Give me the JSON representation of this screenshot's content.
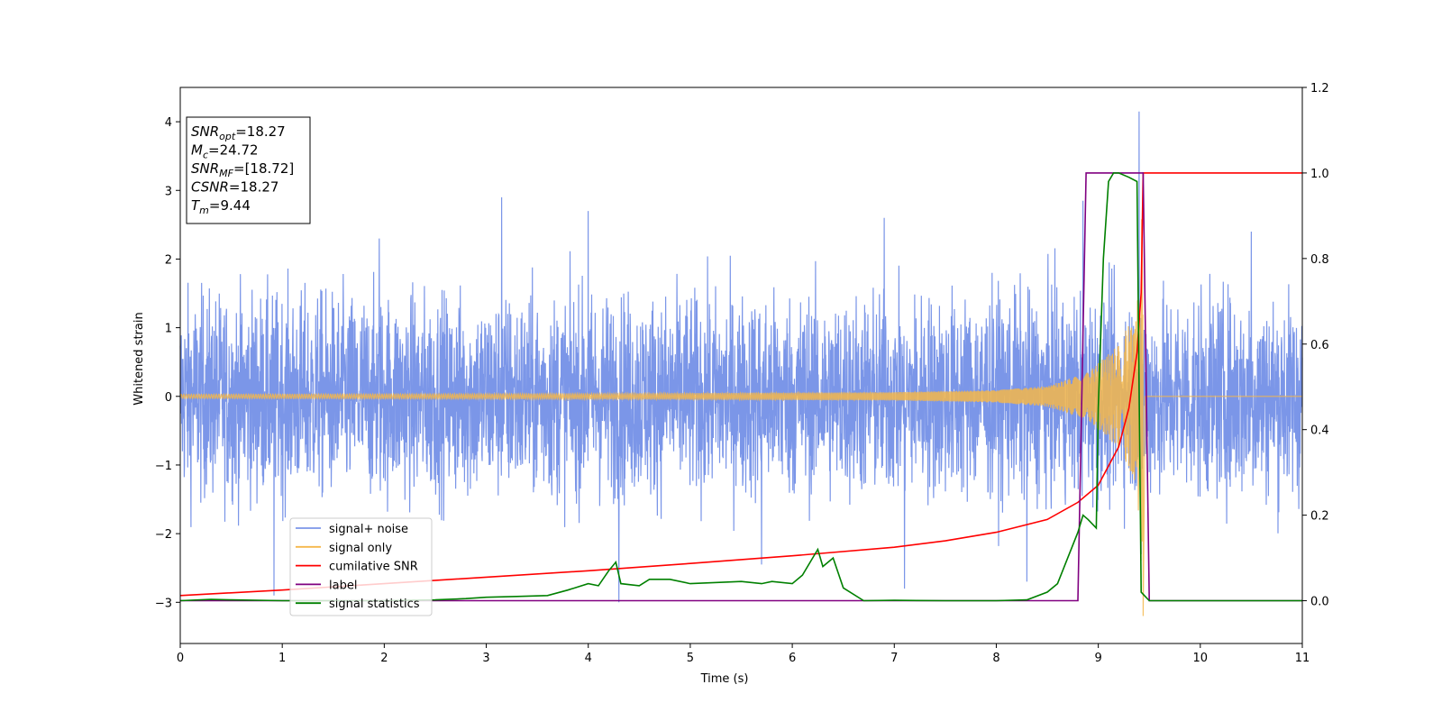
{
  "chart_data": {
    "type": "line",
    "xlabel": "Time (s)",
    "ylabel": "Whitened strain",
    "xlim": [
      0,
      11
    ],
    "ylim": [
      -3.6,
      4.5
    ],
    "y2lim": [
      -0.1,
      1.2
    ],
    "x_ticks": [
      0,
      1,
      2,
      3,
      4,
      5,
      6,
      7,
      8,
      9,
      10,
      11
    ],
    "y_ticks": [
      -3,
      -2,
      -1,
      0,
      1,
      2,
      3,
      4
    ],
    "y_tick_labels": [
      "−3",
      "−2",
      "−1",
      "0",
      "1",
      "2",
      "3",
      "4"
    ],
    "y2_ticks": [
      0.0,
      0.2,
      0.4,
      0.6,
      0.8,
      1.0,
      1.2
    ],
    "y2_tick_labels": [
      "0.0",
      "0.2",
      "0.4",
      "0.6",
      "0.8",
      "1.0",
      "1.2"
    ],
    "grid": false,
    "legend_position": "lower-left",
    "annotation": {
      "lines": [
        {
          "sym": "SNR",
          "sub": "opt",
          "val": "=18.27"
        },
        {
          "sym": "M",
          "sub": "c",
          "val": "=24.72"
        },
        {
          "sym": "SNR",
          "sub": "MF",
          "val": "=[18.72]"
        },
        {
          "sym": "CSNR",
          "sub": "",
          "val": "=18.27"
        },
        {
          "sym": "T",
          "sub": "m",
          "val": "=9.44"
        }
      ]
    },
    "series": [
      {
        "name": "signal+ noise",
        "color": "#7b96e8",
        "axis": "left",
        "kind": "noise",
        "envelope_max": 2.4,
        "envelope_min": -2.4,
        "peaks": [
          [
            0.92,
            -2.9
          ],
          [
            1.95,
            2.3
          ],
          [
            3.15,
            2.9
          ],
          [
            4.0,
            2.7
          ],
          [
            4.3,
            -3.0
          ],
          [
            5.7,
            -2.45
          ],
          [
            6.9,
            2.6
          ],
          [
            7.1,
            -2.8
          ],
          [
            8.3,
            -2.7
          ],
          [
            8.85,
            2.85
          ],
          [
            9.4,
            4.15
          ],
          [
            9.42,
            -2.3
          ],
          [
            10.5,
            2.4
          ]
        ]
      },
      {
        "name": "signal only",
        "color": "#f5b74a",
        "axis": "left",
        "kind": "chirp",
        "t_merge": 9.44,
        "amplitude_envelope": [
          [
            0,
            0.03
          ],
          [
            4,
            0.04
          ],
          [
            7,
            0.06
          ],
          [
            8,
            0.09
          ],
          [
            8.5,
            0.15
          ],
          [
            8.9,
            0.35
          ],
          [
            9.2,
            0.75
          ],
          [
            9.38,
            1.3
          ],
          [
            9.44,
            3.0
          ]
        ],
        "final_dip": [
          9.44,
          -3.2
        ]
      },
      {
        "name": "cumilative SNR",
        "color": "#ff0000",
        "axis": "right",
        "x": [
          0,
          1,
          2,
          3,
          4,
          5,
          6,
          7,
          7.5,
          8,
          8.5,
          8.8,
          9.0,
          9.2,
          9.3,
          9.38,
          9.42,
          9.44,
          11
        ],
        "y": [
          0.012,
          0.025,
          0.04,
          0.055,
          0.07,
          0.087,
          0.105,
          0.125,
          0.14,
          0.16,
          0.19,
          0.23,
          0.27,
          0.36,
          0.45,
          0.58,
          0.72,
          1.0,
          1.0
        ]
      },
      {
        "name": "label",
        "color": "#800080",
        "axis": "right",
        "x": [
          0,
          8.8,
          8.88,
          9.44,
          9.5,
          11
        ],
        "y": [
          0.0,
          0.0,
          1.0,
          1.0,
          0.0,
          0.0
        ]
      },
      {
        "name": "signal statistics",
        "color": "#008000",
        "axis": "right",
        "x": [
          0,
          0.3,
          0.5,
          1,
          2,
          2.5,
          2.8,
          3.0,
          3.3,
          3.6,
          3.8,
          4.0,
          4.1,
          4.2,
          4.27,
          4.32,
          4.5,
          4.6,
          4.7,
          4.8,
          5.0,
          5.5,
          5.7,
          5.8,
          6.0,
          6.1,
          6.2,
          6.25,
          6.3,
          6.4,
          6.5,
          6.7,
          7.0,
          7.5,
          8.0,
          8.3,
          8.5,
          8.6,
          8.7,
          8.8,
          8.85,
          8.9,
          8.98,
          9.0,
          9.05,
          9.1,
          9.15,
          9.2,
          9.3,
          9.38,
          9.4,
          9.42,
          9.5,
          11
        ],
        "y": [
          0.0,
          0.003,
          0.002,
          0.0,
          0.0,
          0.002,
          0.005,
          0.008,
          0.01,
          0.012,
          0.025,
          0.04,
          0.035,
          0.07,
          0.09,
          0.04,
          0.035,
          0.05,
          0.05,
          0.05,
          0.04,
          0.045,
          0.04,
          0.045,
          0.04,
          0.06,
          0.1,
          0.12,
          0.08,
          0.1,
          0.03,
          0.0,
          0.001,
          0.0,
          0.0,
          0.002,
          0.02,
          0.04,
          0.1,
          0.16,
          0.2,
          0.19,
          0.17,
          0.45,
          0.8,
          0.98,
          1.0,
          1.0,
          0.99,
          0.98,
          0.5,
          0.02,
          0.0,
          0.0
        ]
      }
    ]
  }
}
